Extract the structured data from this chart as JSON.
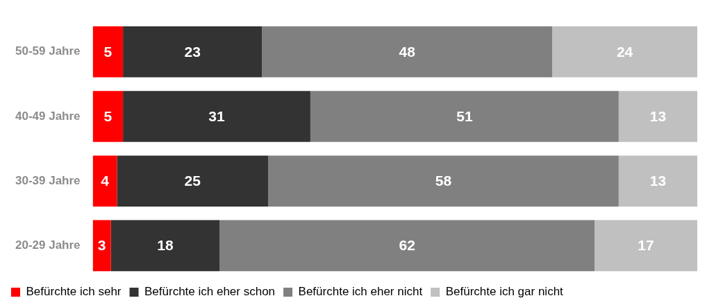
{
  "chart_data": {
    "type": "bar",
    "orientation": "horizontal",
    "stacked": true,
    "categories": [
      "50-59 Jahre",
      "40-49 Jahre",
      "30-39 Jahre",
      "20-29 Jahre"
    ],
    "series": [
      {
        "name": "Befürchte ich sehr",
        "color": "#ff0000",
        "values": [
          5,
          5,
          4,
          3
        ]
      },
      {
        "name": "Befürchte ich eher schon",
        "color": "#333333",
        "values": [
          23,
          31,
          25,
          18
        ]
      },
      {
        "name": "Befürchte ich eher nicht",
        "color": "#808080",
        "values": [
          48,
          51,
          58,
          62
        ]
      },
      {
        "name": "Befürchte ich gar nicht",
        "color": "#c0c0c0",
        "values": [
          24,
          13,
          13,
          17
        ]
      }
    ],
    "xlim": [
      0,
      100
    ],
    "data_labels": true,
    "legend": "bottom left",
    "tick_labels": "y"
  }
}
